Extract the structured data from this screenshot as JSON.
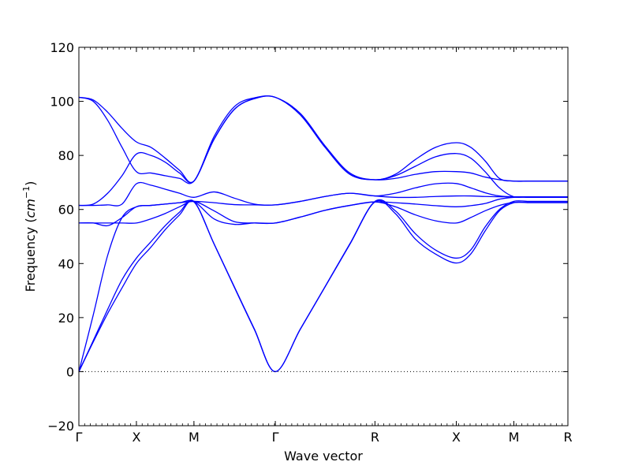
{
  "chart_data": {
    "type": "line",
    "title": "",
    "xlabel": "Wave vector",
    "ylabel": "Frequency (cm⁻¹)",
    "ylabel_prefix": "Frequency (",
    "ylabel_unit": "cm",
    "ylabel_exp": "−1",
    "ylabel_suffix": ")",
    "ylim": [
      -20,
      120
    ],
    "xlim": [
      0,
      8.5
    ],
    "yticks": [
      -20,
      0,
      20,
      40,
      60,
      80,
      100,
      120
    ],
    "ytick_labels": [
      "−20",
      "0",
      "20",
      "40",
      "60",
      "80",
      "100",
      "120"
    ],
    "xticks": [
      {
        "x": 0.0,
        "label": "Γ"
      },
      {
        "x": 1.0,
        "label": "X"
      },
      {
        "x": 2.0,
        "label": "M"
      },
      {
        "x": 3.4142,
        "label": "Γ"
      },
      {
        "x": 5.1463,
        "label": "R"
      },
      {
        "x": 6.5605,
        "label": "X"
      },
      {
        "x": 7.5605,
        "label": "M"
      },
      {
        "x": 8.5605,
        "label": "R"
      }
    ],
    "zero_line": {
      "y": 0,
      "style": "dotted"
    },
    "grid": false,
    "legend": "none",
    "series_color": "#0000ff",
    "series": [
      {
        "x": [
          0,
          0.25,
          0.5,
          0.75,
          1.0,
          1.25,
          1.5,
          1.75,
          2.0,
          2.35,
          2.7,
          3.05,
          3.4142,
          3.85,
          4.28,
          4.71,
          5.1463,
          5.5,
          5.85,
          6.2,
          6.5605,
          6.81,
          7.06,
          7.31,
          7.5605,
          7.81,
          8.06,
          8.31,
          8.5605
        ],
        "y": [
          0,
          11,
          21.5,
          31,
          40,
          46,
          52.5,
          58,
          62.8,
          47.2,
          31.3,
          15.6,
          0,
          15.7,
          31.4,
          47.1,
          62.8,
          58.5,
          49,
          43.5,
          40.2,
          43.5,
          52,
          59.5,
          62.5,
          62.5,
          62.5,
          62.5,
          62.5
        ]
      },
      {
        "x": [
          0,
          0.25,
          0.5,
          0.75,
          1.0,
          1.25,
          1.5,
          1.75,
          2.0,
          2.35,
          2.7,
          3.05,
          3.4142,
          3.85,
          4.28,
          4.71,
          5.1463,
          5.5,
          5.85,
          6.2,
          6.5605,
          6.81,
          7.06,
          7.31,
          7.5605,
          7.81,
          8.06,
          8.31,
          8.5605
        ],
        "y": [
          0,
          11.5,
          23,
          34,
          42,
          48,
          54,
          59,
          63,
          47.3,
          31.5,
          15.8,
          0,
          15.8,
          31.5,
          47.3,
          63,
          59.5,
          51,
          45,
          42,
          45,
          53.5,
          60,
          63,
          63,
          63,
          63,
          63
        ]
      },
      {
        "x": [
          0,
          0.25,
          0.5,
          0.75,
          1.0,
          1.25,
          1.5,
          1.75,
          2.0,
          2.35,
          2.7,
          3.05,
          3.4142,
          3.85,
          4.28,
          4.71,
          5.1463,
          5.5,
          5.85,
          6.2,
          6.5605,
          6.81,
          7.06,
          7.31,
          7.5605,
          7.81,
          8.06,
          8.31,
          8.5605
        ],
        "y": [
          0,
          21,
          43,
          57,
          61,
          61.5,
          62,
          62.5,
          63,
          56.5,
          54.5,
          55,
          55,
          57.2,
          59.7,
          61.5,
          62.8,
          61,
          58,
          55.8,
          55,
          57,
          59.5,
          61.5,
          62.6,
          62.6,
          62.6,
          62.6,
          62.6
        ]
      },
      {
        "x": [
          0,
          0.25,
          0.5,
          0.75,
          1.0,
          1.25,
          1.5,
          1.75,
          2.0,
          2.35,
          2.7,
          3.05,
          3.4142,
          3.85,
          4.28,
          4.71,
          5.1463,
          5.5,
          5.85,
          6.2,
          6.5605,
          6.81,
          7.06,
          7.31,
          7.5605,
          7.81,
          8.06,
          8.31,
          8.5605
        ],
        "y": [
          55,
          55,
          55,
          55,
          55,
          56.5,
          58.5,
          61,
          63,
          59.5,
          55.5,
          55,
          55,
          57.2,
          59.7,
          61.5,
          62.8,
          62.5,
          62,
          61.4,
          61,
          61.4,
          62.2,
          63.8,
          64.5,
          64.5,
          64.5,
          64.5,
          64.5
        ]
      },
      {
        "x": [
          0,
          0.25,
          0.5,
          0.75,
          1.0,
          1.25,
          1.5,
          1.75,
          2.0,
          2.35,
          2.7,
          3.05,
          3.4142,
          3.85,
          4.28,
          4.71,
          5.1463,
          5.5,
          5.85,
          6.2,
          6.5605,
          6.81,
          7.06,
          7.31,
          7.5605,
          7.81,
          8.06,
          8.31,
          8.5605
        ],
        "y": [
          55,
          55,
          54,
          57,
          61,
          61.5,
          62,
          62.5,
          63,
          62.5,
          61.8,
          61.7,
          61.7,
          63,
          64.8,
          66,
          65,
          64.5,
          64.5,
          64.8,
          65,
          65,
          64.8,
          64.7,
          64.7,
          64.7,
          64.7,
          64.7,
          64.7
        ]
      },
      {
        "x": [
          0,
          0.25,
          0.5,
          0.75,
          1.0,
          1.25,
          1.5,
          1.75,
          2.0,
          2.35,
          2.7,
          3.05,
          3.4142,
          3.85,
          4.28,
          4.71,
          5.1463,
          5.5,
          5.85,
          6.2,
          6.5605,
          6.81,
          7.06,
          7.31,
          7.5605,
          7.81,
          8.06,
          8.31,
          8.5605
        ],
        "y": [
          61.5,
          61.5,
          61.7,
          62,
          69.5,
          69,
          67.5,
          66,
          64.5,
          66.5,
          64.2,
          62,
          61.7,
          63,
          64.8,
          66,
          65,
          66,
          68,
          69.5,
          69.6,
          68,
          66.2,
          65,
          64.7,
          64.7,
          64.7,
          64.7,
          64.7
        ]
      },
      {
        "x": [
          0,
          0.25,
          0.5,
          0.75,
          1.0,
          1.25,
          1.5,
          1.75,
          2.0,
          2.35,
          2.7,
          3.05,
          3.4142,
          3.85,
          4.28,
          4.71,
          5.1463,
          5.5,
          5.85,
          6.2,
          6.5605,
          6.81,
          7.06,
          7.31,
          7.5605,
          7.81,
          8.06,
          8.31,
          8.5605
        ],
        "y": [
          61.5,
          62,
          66,
          72.5,
          80.5,
          80,
          77.5,
          73.5,
          70.5,
          86,
          97,
          101,
          101.5,
          95,
          83,
          73,
          71,
          71.5,
          73,
          74,
          74,
          73.5,
          72,
          71,
          70.5,
          70.5,
          70.5,
          70.5,
          70.5
        ]
      },
      {
        "x": [
          0,
          0.25,
          0.5,
          0.75,
          1.0,
          1.25,
          1.5,
          1.75,
          2.0,
          2.35,
          2.7,
          3.05,
          3.4142,
          3.85,
          4.28,
          4.71,
          5.1463,
          5.5,
          5.85,
          6.2,
          6.5605,
          6.81,
          7.06,
          7.31,
          7.5605,
          7.81,
          8.06,
          8.31,
          8.5605
        ],
        "y": [
          101.5,
          100,
          93,
          83,
          74,
          73.5,
          72.5,
          71.5,
          70.5,
          86,
          97,
          101,
          101.5,
          95,
          83,
          73,
          71,
          72.5,
          76,
          79.5,
          80.7,
          79,
          74,
          68,
          64.7,
          64.7,
          64.7,
          64.7,
          64.7
        ]
      },
      {
        "x": [
          0,
          0.25,
          0.5,
          0.75,
          1.0,
          1.25,
          1.5,
          1.75,
          2.0,
          2.35,
          2.7,
          3.05,
          3.4142,
          3.85,
          4.28,
          4.71,
          5.1463,
          5.5,
          5.85,
          6.2,
          6.5605,
          6.81,
          7.06,
          7.31,
          7.5605,
          7.81,
          8.06,
          8.31,
          8.5605
        ],
        "y": [
          101.5,
          100.5,
          96,
          90,
          85,
          83,
          79,
          74.5,
          70.5,
          87,
          98,
          101.3,
          101.5,
          95.5,
          83.5,
          73.5,
          71,
          73,
          78.5,
          83,
          84.7,
          83,
          78,
          71.5,
          70.5,
          70.5,
          70.5,
          70.5,
          70.5
        ]
      }
    ]
  }
}
